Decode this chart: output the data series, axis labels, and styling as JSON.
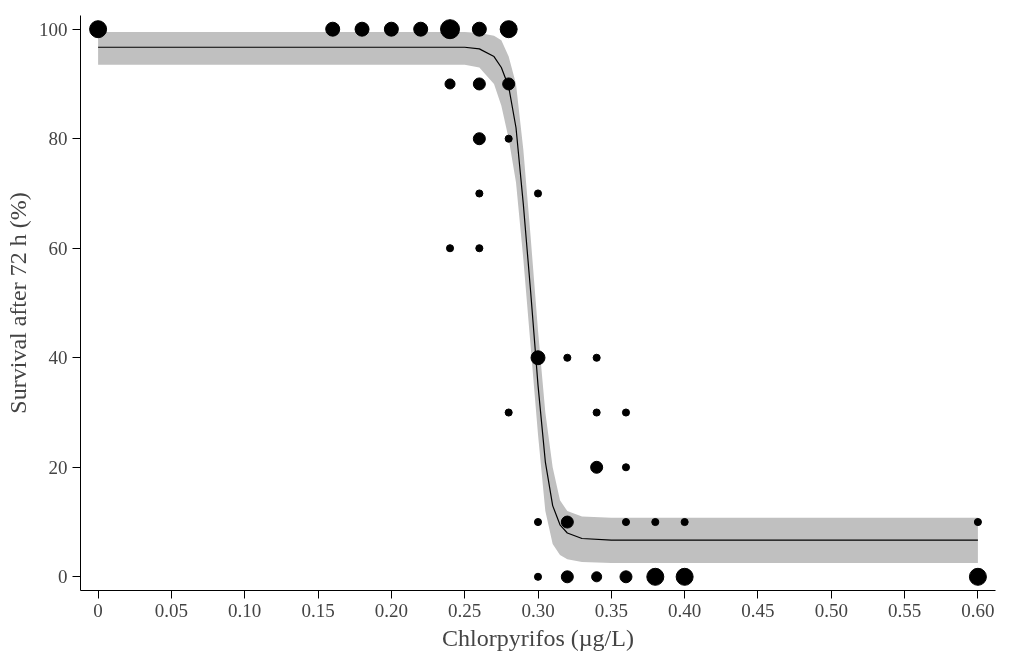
{
  "chart_data": {
    "type": "bubble",
    "xlabel": "Chlorpyrifos (µg/L)",
    "ylabel": "Survival after 72 h (%)",
    "xlim": [
      -0.012,
      0.612
    ],
    "ylim": [
      -2.5,
      102.5
    ],
    "xticks": [
      0,
      0.05,
      {
        "value": 0.1,
        "label": "0.10"
      },
      0.15,
      {
        "value": 0.2,
        "label": "0.20"
      },
      0.25,
      {
        "value": 0.3,
        "label": "0.30"
      },
      0.35,
      {
        "value": 0.4,
        "label": "0.40"
      },
      0.45,
      {
        "value": 0.5,
        "label": "0.50"
      },
      0.55,
      {
        "value": 0.6,
        "label": "0.60"
      }
    ],
    "yticks": [
      0,
      20,
      40,
      60,
      80,
      100
    ],
    "grid": false,
    "series": [
      {
        "marker": "circle",
        "color": "#000000",
        "x": [
          0,
          0.16,
          0.18,
          0.2,
          0.22,
          0.24,
          0.26,
          0.28,
          0.24,
          0.26,
          0.28,
          0.26,
          0.28,
          0.26,
          0.3,
          0.24,
          0.26,
          0.3,
          0.32,
          0.34,
          0.28,
          0.34,
          0.36,
          0.34,
          0.36,
          0.3,
          0.32,
          0.36,
          0.38,
          0.4,
          0.6,
          0.3,
          0.32,
          0.34,
          0.36,
          0.38,
          0.4,
          0.6
        ],
        "values": [
          100,
          100,
          100,
          100,
          100,
          100,
          100,
          100,
          90,
          90,
          90,
          80,
          80,
          70,
          70,
          60,
          60,
          40,
          40,
          40,
          30,
          30,
          30,
          20,
          20,
          10,
          10,
          10,
          10,
          10,
          10,
          0,
          0,
          0,
          0,
          0,
          0,
          0
        ],
        "sizes": [
          0.8,
          0.54,
          0.54,
          0.54,
          0.54,
          1,
          0.54,
          0.8,
          0.28,
          0.4,
          0.4,
          0.4,
          0.14,
          0.14,
          0.14,
          0.14,
          0.14,
          0.54,
          0.14,
          0.14,
          0.14,
          0.14,
          0.14,
          0.4,
          0.14,
          0.14,
          0.4,
          0.14,
          0.14,
          0.14,
          0.14,
          0.14,
          0.4,
          0.28,
          0.4,
          0.8,
          0.8,
          0.8
        ]
      },
      {
        "type": "line",
        "color": "#000000",
        "x": [
          0,
          0.25,
          0.26,
          0.27,
          0.275,
          0.28,
          0.285,
          0.29,
          0.295,
          0.3,
          0.305,
          0.31,
          0.315,
          0.32,
          0.33,
          0.35,
          0.6
        ],
        "values": [
          96.7,
          96.7,
          96.4,
          95,
          93,
          89.5,
          82,
          68,
          52,
          35,
          21,
          13,
          9.5,
          8,
          7,
          6.7,
          6.7
        ],
        "lower": [
          93.5,
          93.5,
          93,
          90,
          86,
          80,
          72,
          58,
          42,
          26,
          12,
          6,
          4,
          3.2,
          2.7,
          2.5,
          2.5
        ],
        "upper": [
          99.5,
          99.5,
          99.3,
          98.8,
          98,
          95,
          90,
          78,
          62,
          45,
          30,
          20,
          14,
          12,
          11,
          10.8,
          10.8
        ]
      }
    ]
  }
}
